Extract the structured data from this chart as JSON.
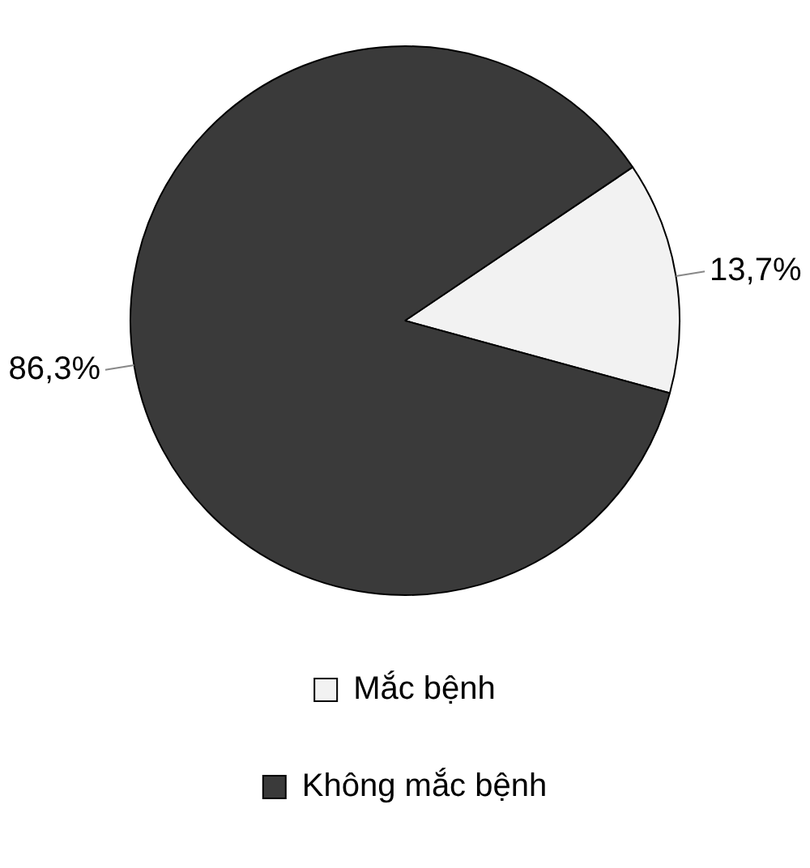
{
  "chart_data": {
    "type": "pie",
    "categories": [
      "Mắc bệnh",
      "Không mắc bệnh"
    ],
    "values": [
      13.7,
      86.3
    ],
    "colors": [
      "#f2f2f2",
      "#3a3a3a"
    ],
    "value_labels": [
      "13,7%",
      "86,3%"
    ],
    "legend": "bottom"
  }
}
